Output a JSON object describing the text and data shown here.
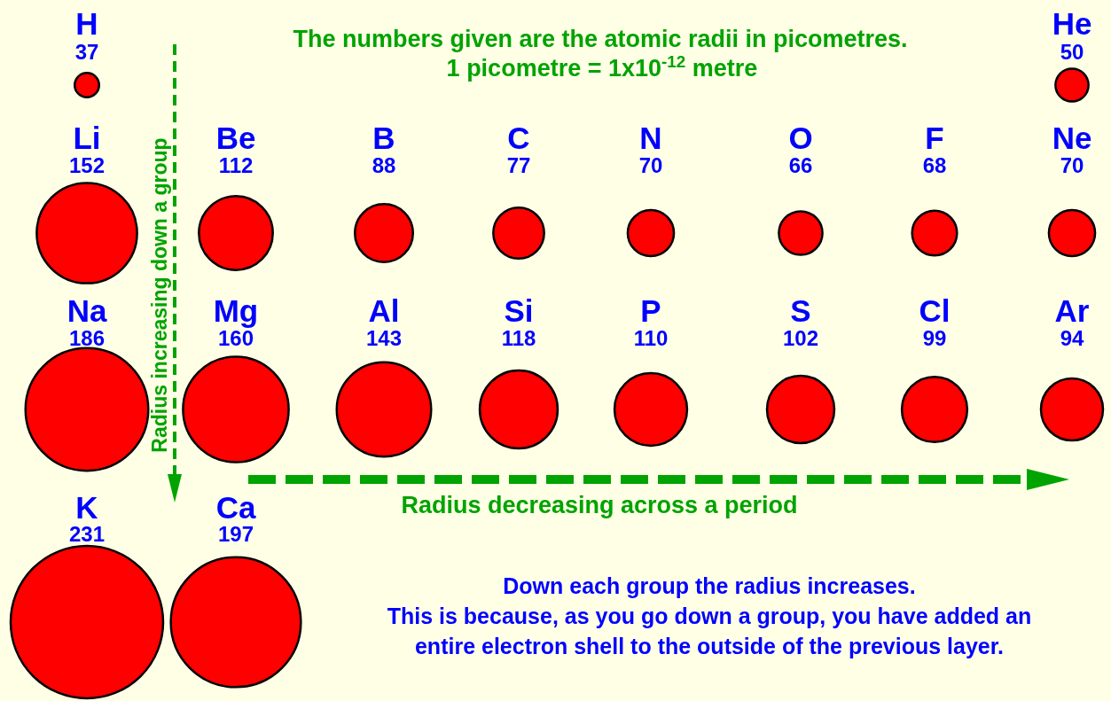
{
  "chart_data": {
    "type": "other",
    "title": "The numbers given are the atomic radii in picometres.",
    "subtitle": "1 picometre = 1x10$^{-12}$ metre",
    "xlabel": "Radius decreasing across a period",
    "ylabel": "Radius increasing down a group",
    "categories": [
      "H",
      null,
      null,
      null,
      null,
      null,
      null,
      "He",
      "Li",
      "Be",
      "B",
      "C",
      "N",
      "O",
      "F",
      "Ne",
      "Na",
      "Mg",
      "Al",
      "Si",
      "P",
      "S",
      "Cl",
      "Ar",
      "K",
      "Ca"
    ],
    "values": [
      37,
      null,
      null,
      null,
      null,
      null,
      null,
      50,
      152,
      112,
      88,
      77,
      70,
      66,
      68,
      70,
      186,
      160,
      143,
      118,
      110,
      102,
      99,
      94,
      231,
      197
    ],
    "color": "#ff0000",
    "data_labels": true,
    "annotations": [
      "Down each group the radius increases.\nThis is because, as you go down a group, you have added an\nentire electron shell to the outside of the previous layer."
    ]
  }
}
